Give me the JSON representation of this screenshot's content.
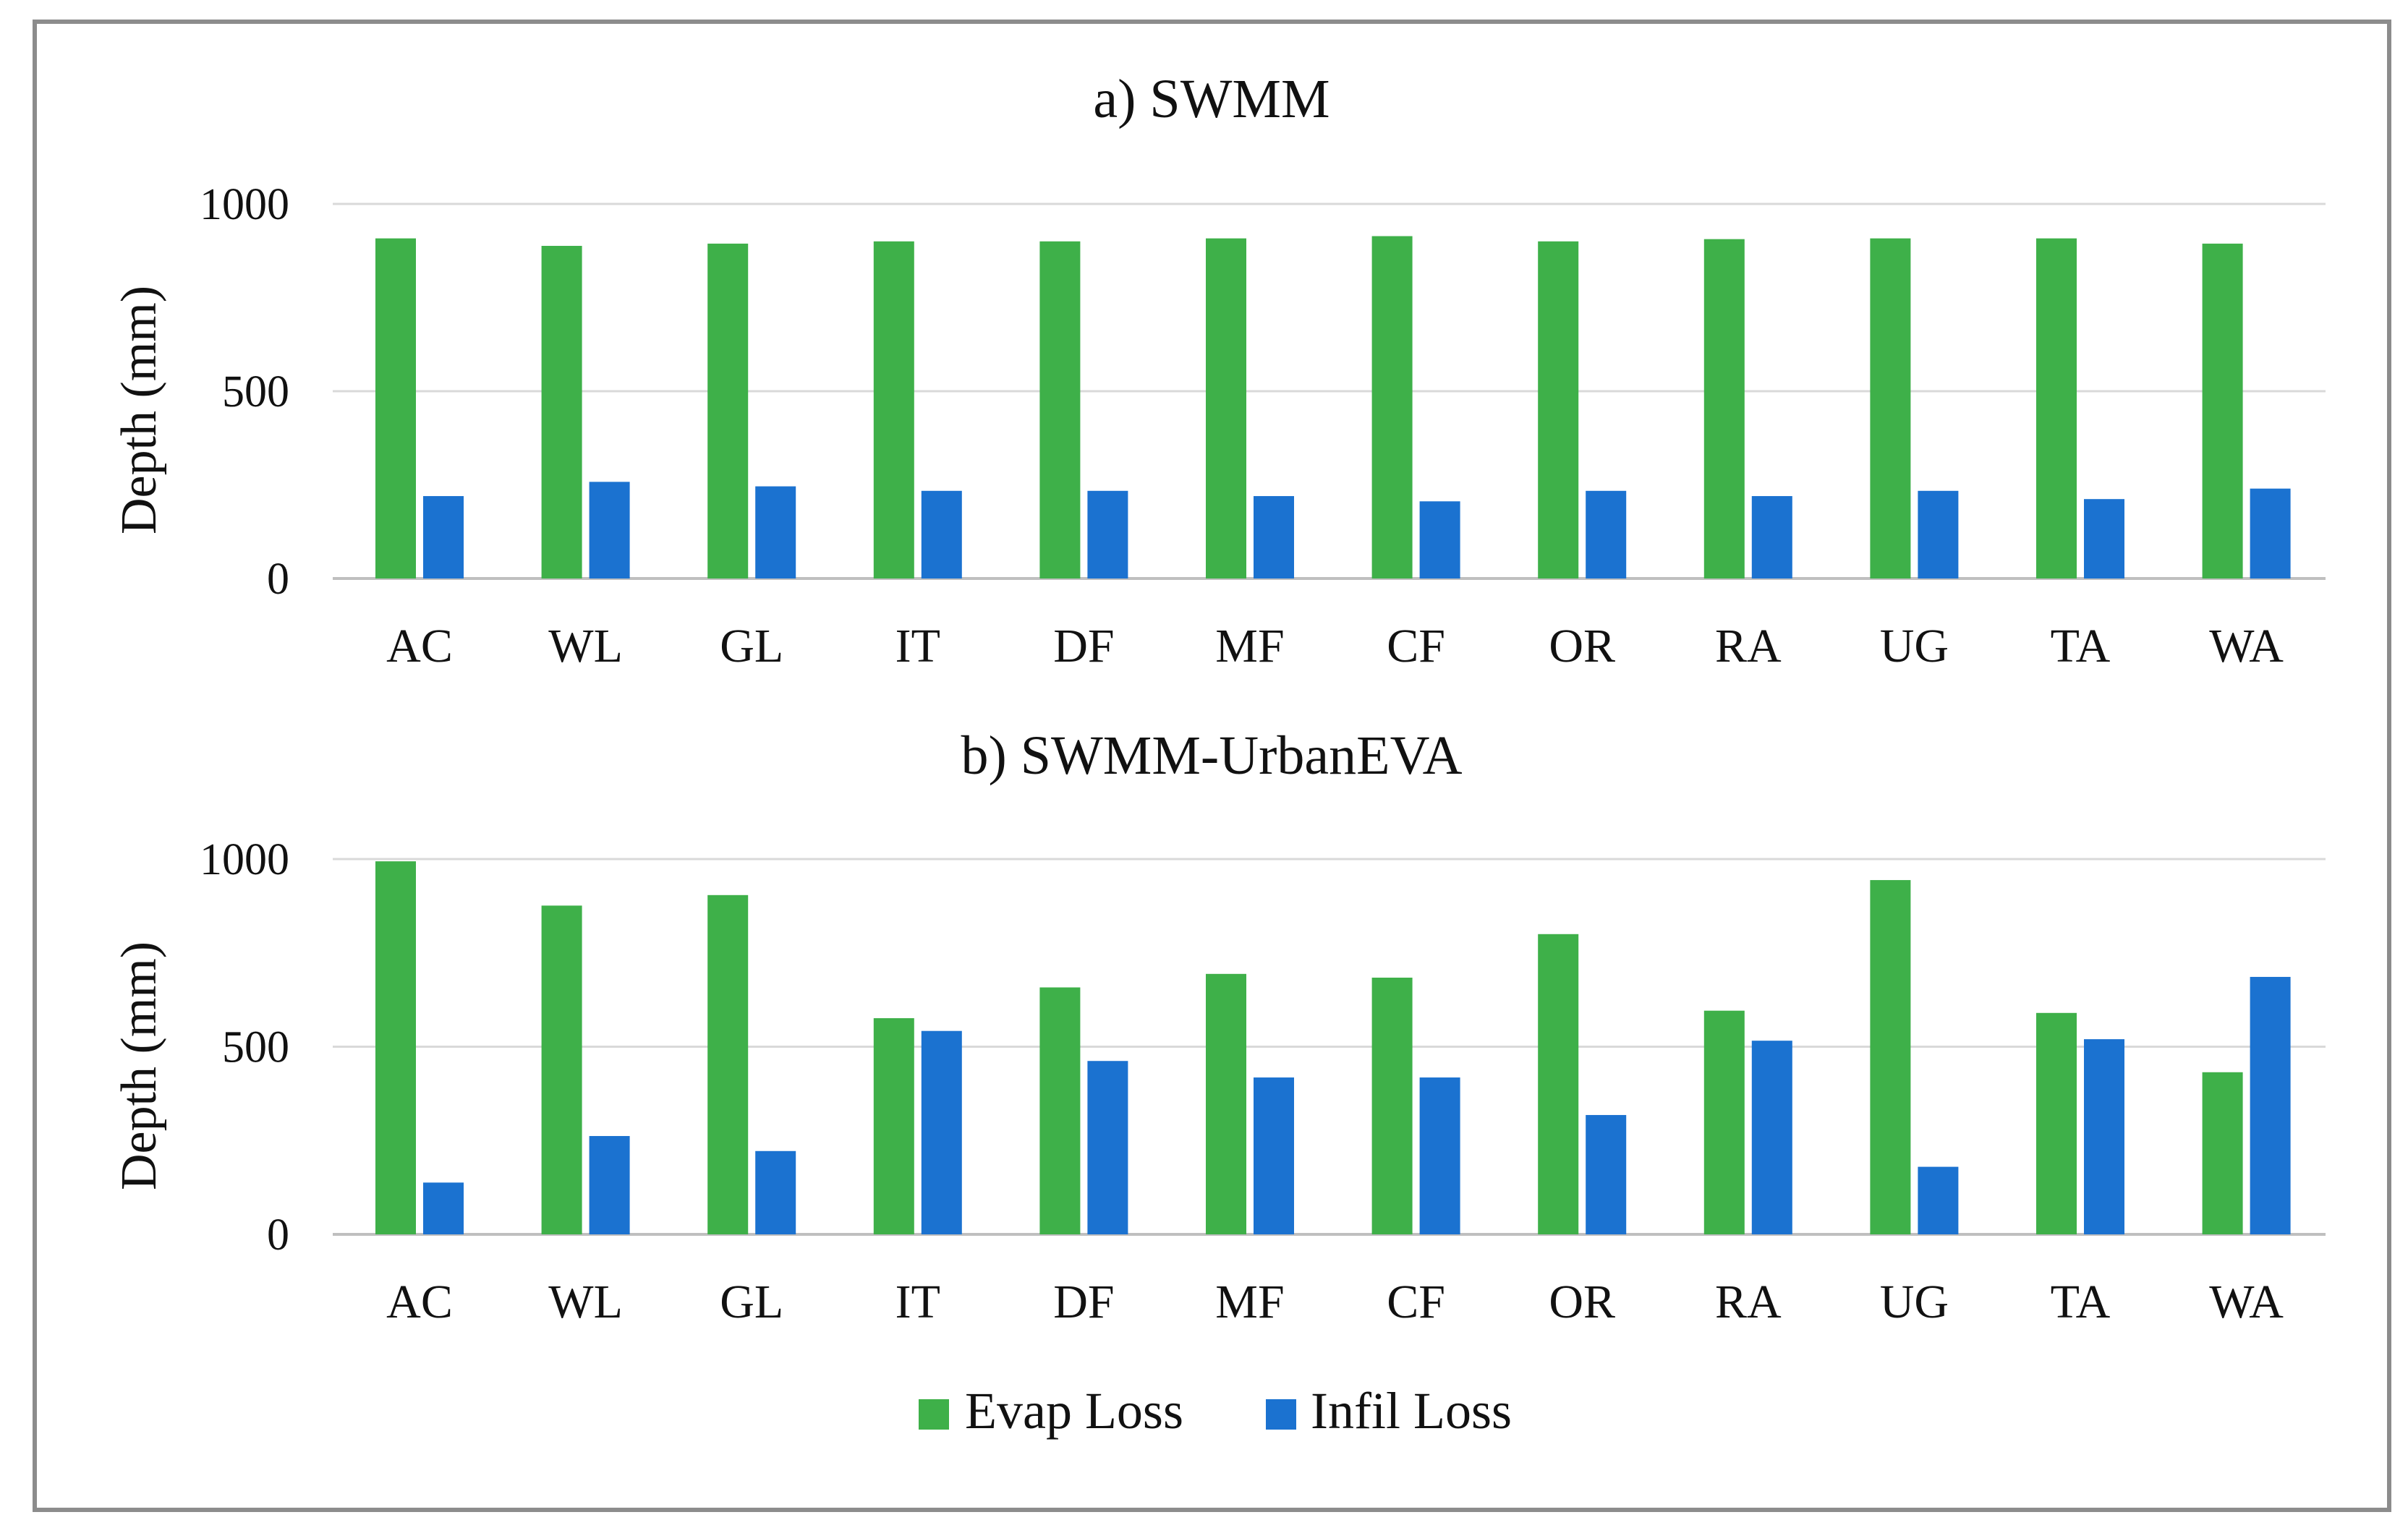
{
  "colors": {
    "evap": "#3eb049",
    "infil": "#1b72d0",
    "grid": "#d9d9d9",
    "axis": "#bfbfbf",
    "frame": "#8c8c8c"
  },
  "legend": [
    {
      "label": "Evap Loss",
      "color": "#3eb049"
    },
    {
      "label": "Infil Loss",
      "color": "#1b72d0"
    }
  ],
  "chart_data": [
    {
      "type": "bar",
      "title": "a) SWMM",
      "ylabel": "Depth (mm)",
      "ylim": [
        0,
        1000
      ],
      "yticks": [
        0,
        500,
        1000
      ],
      "grid": true,
      "categories": [
        "AC",
        "WL",
        "GL",
        "IT",
        "DF",
        "MF",
        "CF",
        "OR",
        "RA",
        "UG",
        "TA",
        "WA"
      ],
      "series": [
        {
          "name": "Evap Loss",
          "values": [
            908,
            888,
            894,
            900,
            900,
            908,
            914,
            900,
            906,
            908,
            908,
            894
          ]
        },
        {
          "name": "Infil Loss",
          "values": [
            220,
            258,
            246,
            234,
            234,
            220,
            206,
            234,
            220,
            234,
            212,
            240
          ]
        }
      ]
    },
    {
      "type": "bar",
      "title": "b) SWMM-UrbanEVA",
      "ylabel": "Depth (mm)",
      "ylim": [
        0,
        1000
      ],
      "yticks": [
        0,
        500,
        1000
      ],
      "grid": true,
      "categories": [
        "AC",
        "WL",
        "GL",
        "IT",
        "DF",
        "MF",
        "CF",
        "OR",
        "RA",
        "UG",
        "TA",
        "WA"
      ],
      "series": [
        {
          "name": "Evap Loss",
          "values": [
            994,
            876,
            904,
            576,
            658,
            694,
            684,
            800,
            596,
            944,
            590,
            432
          ]
        },
        {
          "name": "Infil Loss",
          "values": [
            138,
            262,
            222,
            542,
            462,
            418,
            418,
            318,
            516,
            180,
            520,
            686
          ]
        }
      ]
    }
  ]
}
